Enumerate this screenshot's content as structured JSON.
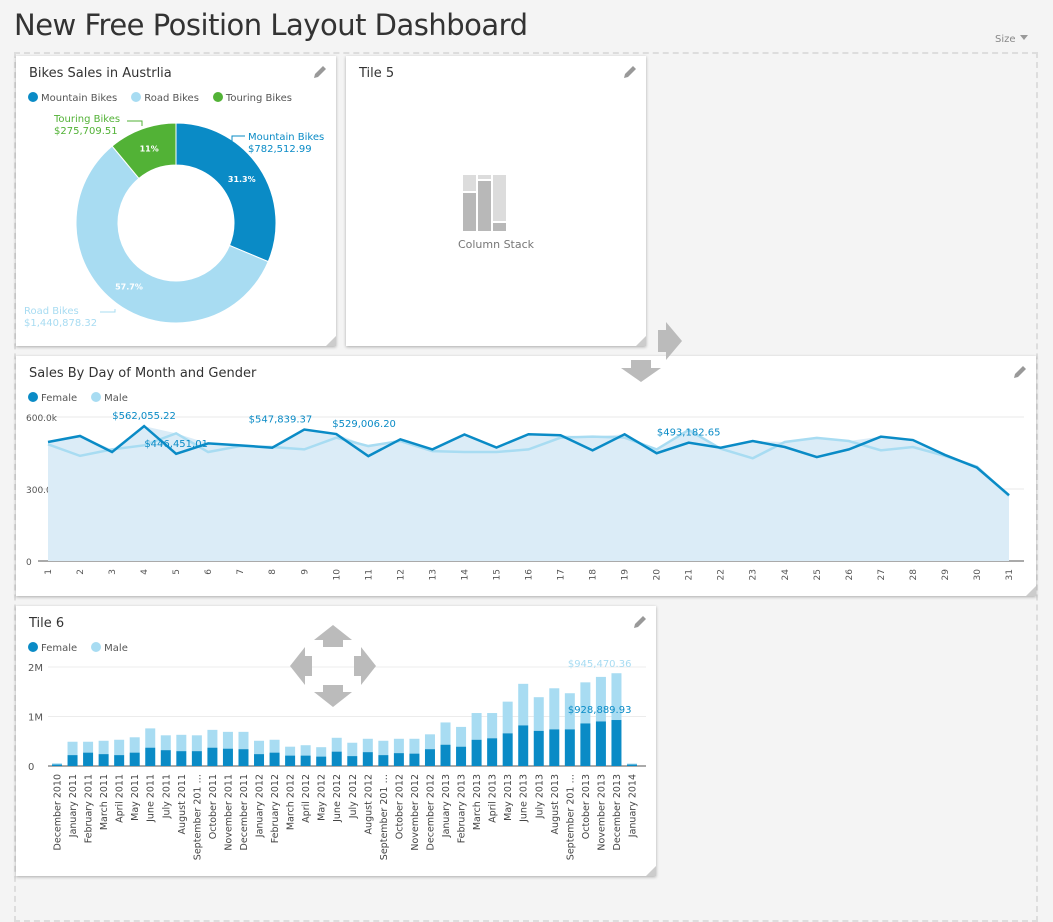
{
  "page": {
    "title": "New Free Position Layout Dashboard",
    "size_label": "Size"
  },
  "tiles": {
    "donut": {
      "title": "Bikes Sales in Austrlia",
      "legend": [
        "Mountain Bikes",
        "Road Bikes",
        "Touring Bikes"
      ]
    },
    "tile5": {
      "title": "Tile 5",
      "placeholder_label": "Column Stack"
    },
    "line": {
      "title": "Sales By Day of Month and Gender",
      "legend": [
        "Female",
        "Male"
      ]
    },
    "tile6": {
      "title": "Tile 6",
      "legend": [
        "Female",
        "Male"
      ]
    }
  },
  "colors": {
    "female": "#0a8bc6",
    "male": "#a8dcf2",
    "mountain": "#0a8bc6",
    "road": "#a8dcf2",
    "touring": "#52b236",
    "area": "#dbecf7"
  },
  "chart_data": [
    {
      "type": "pie",
      "donut": true,
      "categories": [
        "Mountain Bikes",
        "Road Bikes",
        "Touring Bikes"
      ],
      "values": [
        782512.99,
        1440878.32,
        275709.51
      ],
      "value_labels": [
        "$782,512.99",
        "$1,440,878.32",
        "$275,709.51"
      ],
      "percent_labels": [
        "31.3%",
        "57.7%",
        "11%"
      ],
      "legend": "top-left"
    },
    {
      "type": "line",
      "x": [
        1,
        2,
        3,
        4,
        5,
        6,
        7,
        8,
        9,
        10,
        11,
        12,
        13,
        14,
        15,
        16,
        17,
        18,
        19,
        20,
        21,
        22,
        23,
        24,
        25,
        26,
        27,
        28,
        29,
        30,
        31
      ],
      "ylim": [
        0,
        600000
      ],
      "yticks": [
        "0",
        "300.0k",
        "600.0k"
      ],
      "grid": true,
      "legend": "top-left",
      "series": [
        {
          "name": "Female",
          "values": [
            496000,
            521000,
            454000,
            562055,
            446451,
            490000,
            482000,
            472000,
            547839,
            529006,
            437000,
            507000,
            465000,
            527000,
            473000,
            528000,
            524000,
            461000,
            528000,
            449000,
            493183,
            472000,
            500000,
            475000,
            433000,
            465000,
            518000,
            504000,
            442000,
            389000,
            274000
          ]
        },
        {
          "name": "Male",
          "values": [
            486000,
            438000,
            465000,
            482000,
            532000,
            454000,
            479000,
            475000,
            465000,
            514000,
            479000,
            500000,
            458000,
            454000,
            454000,
            465000,
            514000,
            518000,
            514000,
            465000,
            546000,
            468000,
            428000,
            496000,
            513000,
            500000,
            461000,
            475000,
            438000,
            393000,
            271000
          ]
        }
      ],
      "annotations": [
        {
          "x": 4,
          "text": "$562,055.22"
        },
        {
          "x": 5,
          "text": "$446,451.01"
        },
        {
          "x": 9,
          "text": "$547,839.37"
        },
        {
          "x": 10,
          "text": "$529,006.20"
        },
        {
          "x": 21,
          "text": "$493,182.65"
        }
      ]
    },
    {
      "type": "bar",
      "stacked": true,
      "ylim": [
        0,
        2000000
      ],
      "yticks": [
        "0",
        "1M",
        "2M"
      ],
      "grid": true,
      "legend": "top-left",
      "categories": [
        "December 2010",
        "January 2011",
        "February 2011",
        "March 2011",
        "April 2011",
        "May 2011",
        "June 2011",
        "July 2011",
        "August 2011",
        "September 201 …",
        "October 2011",
        "November 2011",
        "December 2011",
        "January 2012",
        "February 2012",
        "March 2012",
        "April 2012",
        "May 2012",
        "June 2012",
        "July 2012",
        "August 2012",
        "September 201 …",
        "October 2012",
        "November 2012",
        "December 2012",
        "January 2013",
        "February 2013",
        "March 2013",
        "April 2013",
        "May 2013",
        "June 2013",
        "July 2013",
        "August 2013",
        "September 201 …",
        "October 2013",
        "November 2013",
        "December 2013",
        "January 2014"
      ],
      "series": [
        {
          "name": "Female",
          "values": [
            30000,
            220000,
            270000,
            240000,
            220000,
            270000,
            370000,
            320000,
            300000,
            300000,
            370000,
            350000,
            340000,
            240000,
            270000,
            210000,
            210000,
            190000,
            290000,
            200000,
            280000,
            220000,
            260000,
            250000,
            340000,
            430000,
            390000,
            530000,
            560000,
            660000,
            820000,
            710000,
            740000,
            740000,
            860000,
            900000,
            928889.93,
            30000
          ]
        },
        {
          "name": "Male",
          "values": [
            25000,
            270000,
            220000,
            270000,
            310000,
            310000,
            390000,
            300000,
            330000,
            320000,
            360000,
            340000,
            350000,
            270000,
            260000,
            180000,
            210000,
            190000,
            280000,
            270000,
            270000,
            290000,
            290000,
            300000,
            300000,
            450000,
            400000,
            540000,
            510000,
            640000,
            840000,
            680000,
            830000,
            730000,
            830000,
            900000,
            945470.36,
            20000
          ]
        }
      ],
      "annotations": [
        {
          "text": "$945,470.36",
          "series": "Male"
        },
        {
          "text": "$928,889.93",
          "series": "Female"
        }
      ]
    }
  ]
}
